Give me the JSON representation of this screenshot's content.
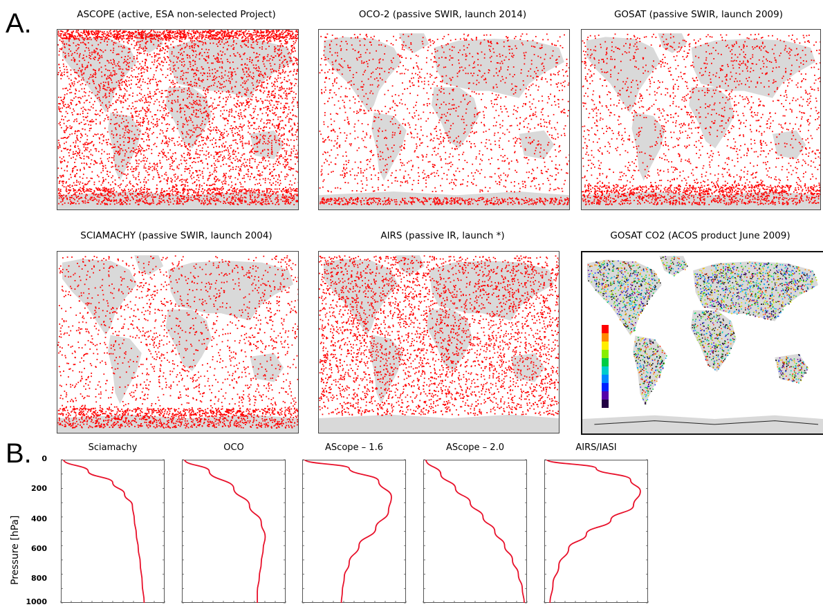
{
  "panel_a_label": "A.",
  "panel_b_label": "B.",
  "maps": [
    {
      "title": "ASCOPE (active, ESA non-selected Project)",
      "density": "very-high",
      "polar_band": "both"
    },
    {
      "title": "OCO-2 (passive SWIR, launch 2014)",
      "density": "medium",
      "polar_band": "south-thin"
    },
    {
      "title": "GOSAT (passive SWIR, launch 2009)",
      "density": "medium",
      "polar_band": "south"
    },
    {
      "title": "SCIAMACHY (passive SWIR, launch 2004)",
      "density": "medium",
      "polar_band": "south"
    },
    {
      "title": "AIRS (passive IR, launch *)",
      "density": "very-high",
      "polar_band": "none"
    },
    {
      "title": "GOSAT CO2 (ACOS product June 2009)",
      "density": "colored",
      "polar_band": "none"
    }
  ],
  "colors": {
    "land": "#d9d9d9",
    "points": "#ff0000",
    "profile": "#e8102a",
    "frame": "#444444"
  },
  "chart_data": {
    "type": "line",
    "ylabel": "Pressure [hPa]",
    "yticks": [
      "0",
      "200",
      "400",
      "600",
      "800",
      "1000"
    ],
    "ylim": [
      1000,
      0
    ],
    "series": [
      {
        "name": "Sciamachy",
        "x": [
          0.0,
          0.25,
          0.5,
          0.62,
          0.7,
          0.72,
          0.74,
          0.76,
          0.78,
          0.8,
          0.82
        ],
        "pressure": [
          0,
          80,
          160,
          240,
          320,
          420,
          520,
          620,
          720,
          860,
          1000
        ]
      },
      {
        "name": "OCO",
        "x": [
          0.0,
          0.25,
          0.5,
          0.66,
          0.78,
          0.82,
          0.8,
          0.78,
          0.76,
          0.74,
          0.74
        ],
        "pressure": [
          0,
          80,
          200,
          320,
          440,
          540,
          620,
          720,
          820,
          920,
          1000
        ]
      },
      {
        "name": "AScope – 1.6",
        "x": [
          0.0,
          0.45,
          0.75,
          0.88,
          0.85,
          0.72,
          0.55,
          0.45,
          0.4,
          0.38,
          0.37
        ],
        "pressure": [
          0,
          60,
          150,
          260,
          360,
          480,
          600,
          720,
          820,
          920,
          1000
        ]
      },
      {
        "name": "AScope – 2.0",
        "x": [
          0.0,
          0.15,
          0.3,
          0.45,
          0.58,
          0.7,
          0.8,
          0.88,
          0.94,
          0.98,
          1.0
        ],
        "pressure": [
          0,
          100,
          200,
          300,
          400,
          500,
          600,
          700,
          800,
          900,
          1000
        ]
      },
      {
        "name": "AIRS/IASI",
        "x": [
          0.0,
          0.5,
          0.85,
          0.95,
          0.88,
          0.65,
          0.4,
          0.22,
          0.12,
          0.06,
          0.03
        ],
        "pressure": [
          0,
          60,
          140,
          220,
          320,
          420,
          520,
          620,
          740,
          870,
          1000
        ]
      }
    ]
  }
}
